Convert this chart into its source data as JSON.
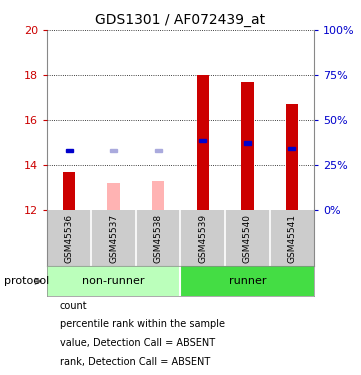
{
  "title": "GDS1301 / AF072439_at",
  "samples": [
    "GSM45536",
    "GSM45537",
    "GSM45538",
    "GSM45539",
    "GSM45540",
    "GSM45541"
  ],
  "ylim": [
    12,
    20
  ],
  "yticks": [
    12,
    14,
    16,
    18,
    20
  ],
  "right_yticks": [
    0,
    25,
    50,
    75,
    100
  ],
  "bar_bottom": 12,
  "bar_values": [
    13.7,
    13.2,
    13.3,
    18.0,
    17.7,
    16.7
  ],
  "bar_colors": [
    "#cc0000",
    "#ffb3b3",
    "#ffb3b3",
    "#cc0000",
    "#cc0000",
    "#cc0000"
  ],
  "rank_values": [
    14.65,
    14.65,
    14.65,
    15.08,
    14.97,
    14.72
  ],
  "rank_colors": [
    "#0000cc",
    "#aaaadd",
    "#aaaadd",
    "#0000cc",
    "#0000cc",
    "#0000cc"
  ],
  "nonrunner_color": "#bbffbb",
  "runner_color": "#44dd44",
  "sample_bg": "#cccccc",
  "legend_items": [
    {
      "label": "count",
      "color": "#cc0000"
    },
    {
      "label": "percentile rank within the sample",
      "color": "#0000cc"
    },
    {
      "label": "value, Detection Call = ABSENT",
      "color": "#ffb3b3"
    },
    {
      "label": "rank, Detection Call = ABSENT",
      "color": "#aaaadd"
    }
  ],
  "left_color": "#cc0000",
  "right_color": "#0000cc",
  "bar_width": 0.28,
  "rank_sq": 0.15
}
